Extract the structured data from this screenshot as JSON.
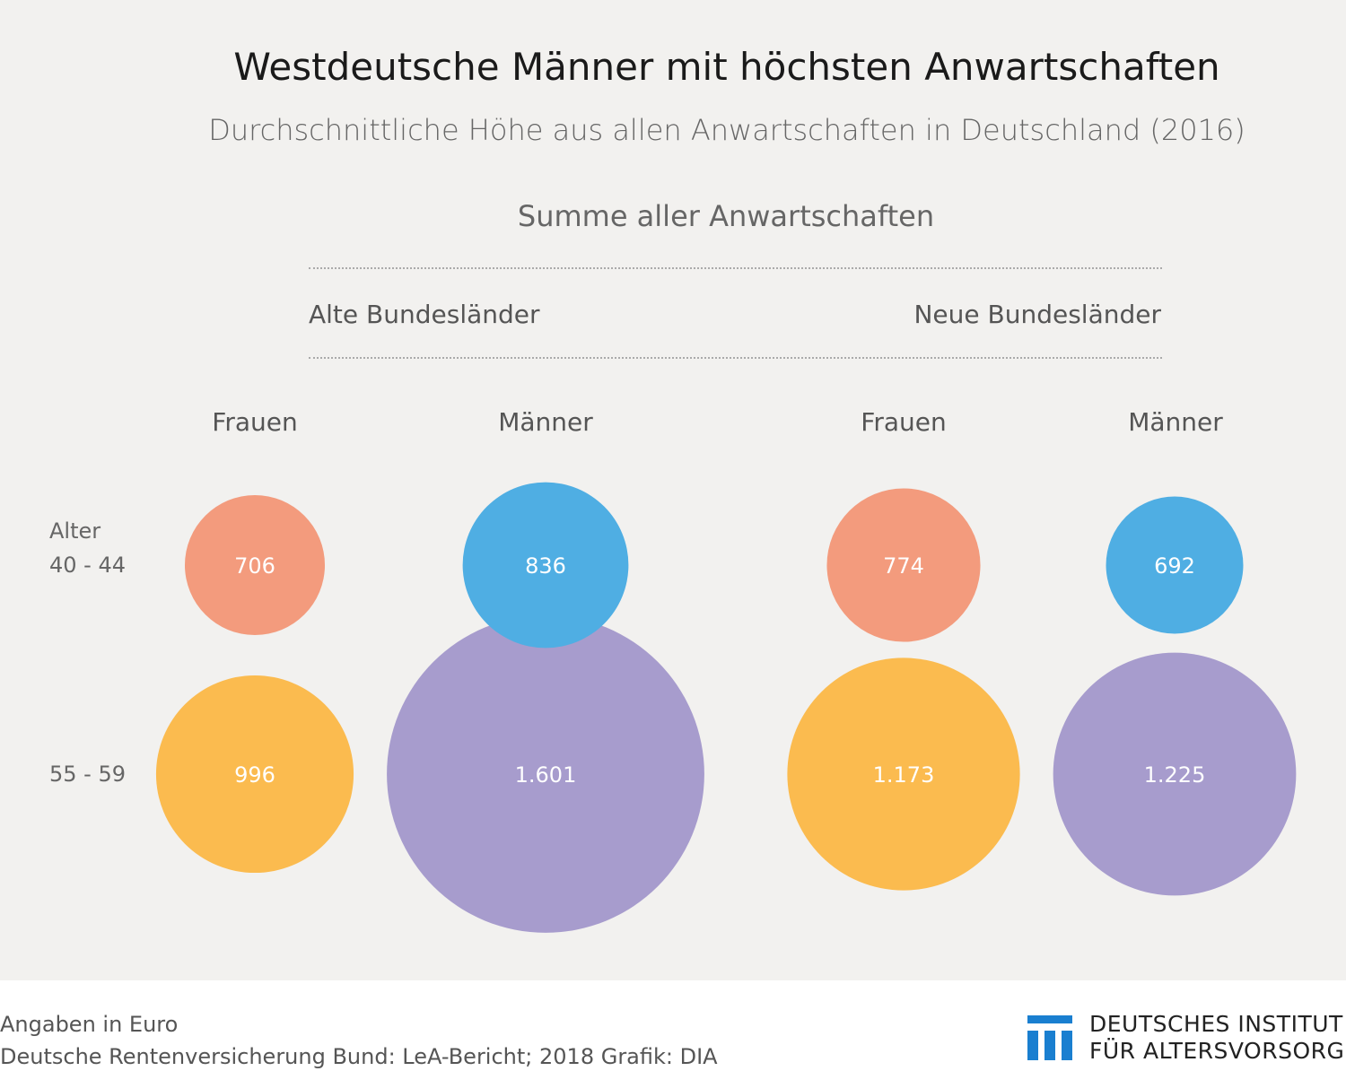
{
  "chart_data": {
    "type": "bubble",
    "title": "Westdeutsche Männer mit höchsten Anwartschaften",
    "subtitle": "Durchschnittliche Höhe aus allen Anwartschaften in Deutschland (2016)",
    "section_title": "Summe aller Anwartschaften",
    "regions": [
      "Alte Bundesländer",
      "Neue Bundesländer"
    ],
    "groups": [
      "Frauen",
      "Männer",
      "Frauen",
      "Männer"
    ],
    "rows": [
      {
        "label_line1": "Alter",
        "label_line2": "40 - 44"
      },
      {
        "label_line1": "",
        "label_line2": "55 - 59"
      }
    ],
    "points": [
      {
        "region": "Alte Bundesländer",
        "group": "Frauen",
        "age": "40 - 44",
        "value": 706,
        "label": "706",
        "color": "#f39b7d"
      },
      {
        "region": "Alte Bundesländer",
        "group": "Männer",
        "age": "40 - 44",
        "value": 836,
        "label": "836",
        "color": "#4faee3"
      },
      {
        "region": "Neue Bundesländer",
        "group": "Frauen",
        "age": "40 - 44",
        "value": 774,
        "label": "774",
        "color": "#f39b7d"
      },
      {
        "region": "Neue Bundesländer",
        "group": "Männer",
        "age": "40 - 44",
        "value": 692,
        "label": "692",
        "color": "#4faee3"
      },
      {
        "region": "Alte Bundesländer",
        "group": "Frauen",
        "age": "55 - 59",
        "value": 996,
        "label": "996",
        "color": "#fbbb4f"
      },
      {
        "region": "Alte Bundesländer",
        "group": "Männer",
        "age": "55 - 59",
        "value": 1601,
        "label": "1.601",
        "color": "#a79ccd"
      },
      {
        "region": "Neue Bundesländer",
        "group": "Frauen",
        "age": "55 - 59",
        "value": 1173,
        "label": "1.173",
        "color": "#fbbb4f"
      },
      {
        "region": "Neue Bundesländer",
        "group": "Männer",
        "age": "55 - 59",
        "value": 1225,
        "label": "1.225",
        "color": "#a79ccd"
      }
    ],
    "unit_note": "Angaben in Euro",
    "source": "Deutsche Rentenversicherung Bund: LeA-Bericht; 2018  Grafik: DIA"
  },
  "logo": {
    "line1": "DEUTSCHES INSTITUT",
    "line2": "FÜR ALTERSVORSORGE",
    "color": "#1a7fd0"
  }
}
